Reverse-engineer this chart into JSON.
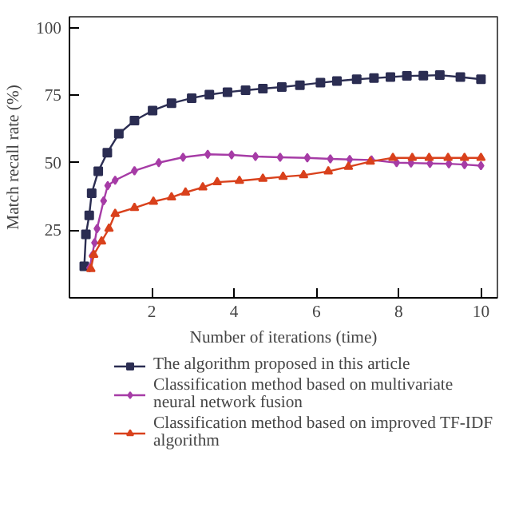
{
  "chart_data": {
    "type": "line",
    "xlabel": "Number of iterations (time)",
    "ylabel": "Match recall rate (%)",
    "xlim": [
      0,
      10.4
    ],
    "ylim": [
      0,
      104
    ],
    "xticks": [
      2,
      4,
      6,
      8,
      10
    ],
    "yticks": [
      25,
      50,
      75,
      100
    ],
    "grid": false,
    "legend": "bottom",
    "series": [
      {
        "name": "The algorithm proposed in this article",
        "color": "#2b2d52",
        "marker": "square",
        "x": [
          0.36,
          0.4,
          0.48,
          0.54,
          0.7,
          0.92,
          1.2,
          1.58,
          2.02,
          2.48,
          2.97,
          3.4,
          3.84,
          4.28,
          4.7,
          5.16,
          5.6,
          6.1,
          6.5,
          6.98,
          7.4,
          7.8,
          8.2,
          8.6,
          9.0,
          9.5,
          10.0
        ],
        "values": [
          11.7,
          23.5,
          30.5,
          38.7,
          46.8,
          53.7,
          60.7,
          65.6,
          69.3,
          72,
          73.9,
          75.2,
          76.1,
          76.8,
          77.4,
          78,
          78.7,
          79.6,
          80.2,
          80.9,
          81.3,
          81.7,
          82.1,
          82.2,
          82.4,
          81.7,
          80.9
        ]
      },
      {
        "name": "Classification method based on multivariate neural network fusion",
        "color": "#a63ca6",
        "marker": "diamond",
        "x": [
          0.49,
          0.55,
          0.61,
          0.67,
          0.83,
          0.93,
          1.11,
          1.58,
          2.17,
          2.76,
          3.36,
          3.94,
          4.52,
          5.12,
          5.78,
          6.34,
          6.81,
          7.34,
          7.95,
          8.3,
          8.76,
          9.22,
          9.6,
          10.0
        ],
        "values": [
          11.1,
          15.6,
          20.4,
          25.6,
          35.9,
          41.5,
          43.5,
          47,
          50,
          52,
          53.1,
          52.9,
          52.3,
          52,
          51.8,
          51.4,
          51.2,
          51,
          50,
          49.9,
          49.7,
          49.6,
          49.3,
          48.9
        ]
      },
      {
        "name": "Classification method based on improved TF-IDF algorithm",
        "color": "#d9411c",
        "marker": "triangle",
        "x": [
          0.52,
          0.59,
          0.78,
          0.96,
          1.11,
          1.58,
          2.04,
          2.48,
          2.82,
          3.24,
          3.59,
          4.13,
          4.7,
          5.19,
          5.69,
          6.29,
          6.78,
          7.31,
          7.86,
          8.33,
          8.74,
          9.2,
          9.6,
          10.0
        ],
        "values": [
          10.7,
          15.9,
          20.9,
          25.6,
          31.1,
          33.3,
          35.6,
          37.2,
          39,
          40.9,
          42.8,
          43.3,
          44.1,
          44.8,
          45.4,
          46.8,
          48.5,
          50.4,
          51.8,
          51.8,
          51.8,
          51.8,
          51.8,
          51.8
        ]
      }
    ]
  }
}
